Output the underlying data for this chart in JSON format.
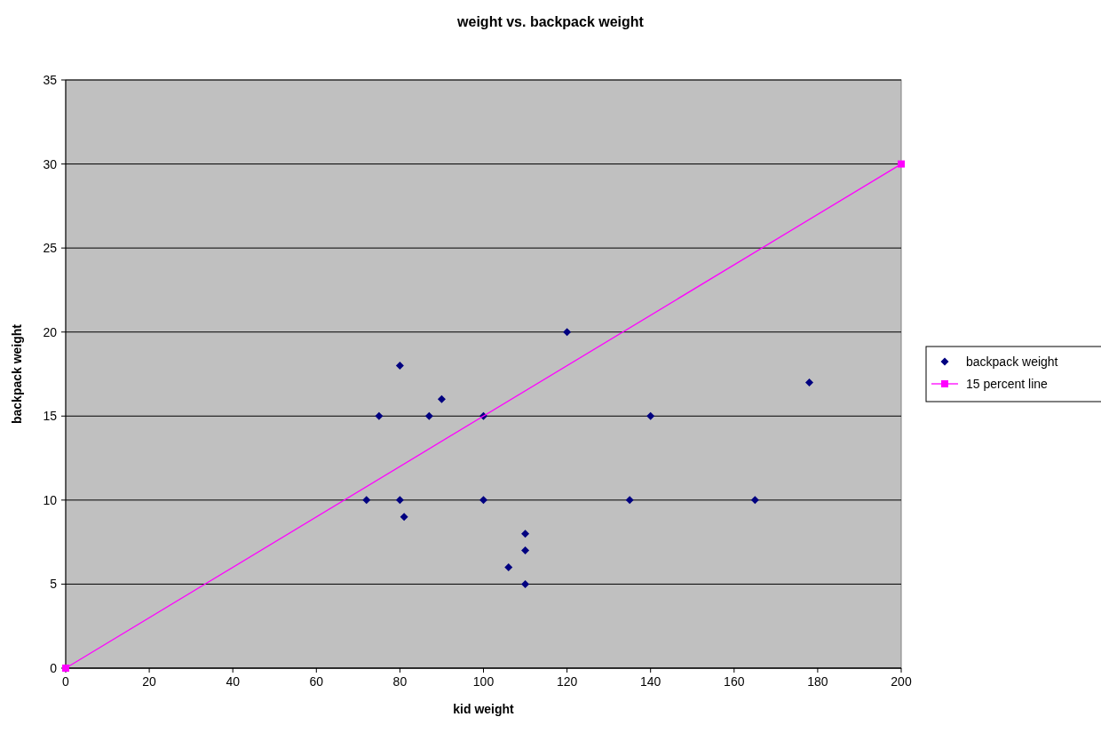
{
  "chart_data": {
    "type": "scatter",
    "title": "weight vs. backpack weight",
    "xlabel": "kid weight",
    "ylabel": "backpack weight",
    "xlim": [
      0,
      200
    ],
    "xticks": [
      0,
      20,
      40,
      60,
      80,
      100,
      120,
      140,
      160,
      180,
      200
    ],
    "ylim": [
      0,
      35
    ],
    "yticks": [
      0,
      5,
      10,
      15,
      20,
      25,
      30,
      35
    ],
    "grid": "y",
    "legend": "right",
    "series": [
      {
        "name": "backpack weight",
        "marker": "diamond",
        "color": "#000080",
        "x": [
          72,
          75,
          80,
          80,
          81,
          87,
          90,
          100,
          100,
          106,
          110,
          110,
          110,
          120,
          135,
          140,
          165,
          178
        ],
        "values": [
          10,
          15,
          18,
          10,
          9,
          15,
          16,
          15,
          10,
          6,
          8,
          7,
          5,
          20,
          10,
          15,
          10,
          17
        ]
      },
      {
        "name": "15 percent line",
        "type": "line",
        "marker": "square",
        "color": "#ff00ff",
        "x": [
          0,
          200
        ],
        "values": [
          0,
          30
        ]
      }
    ]
  }
}
